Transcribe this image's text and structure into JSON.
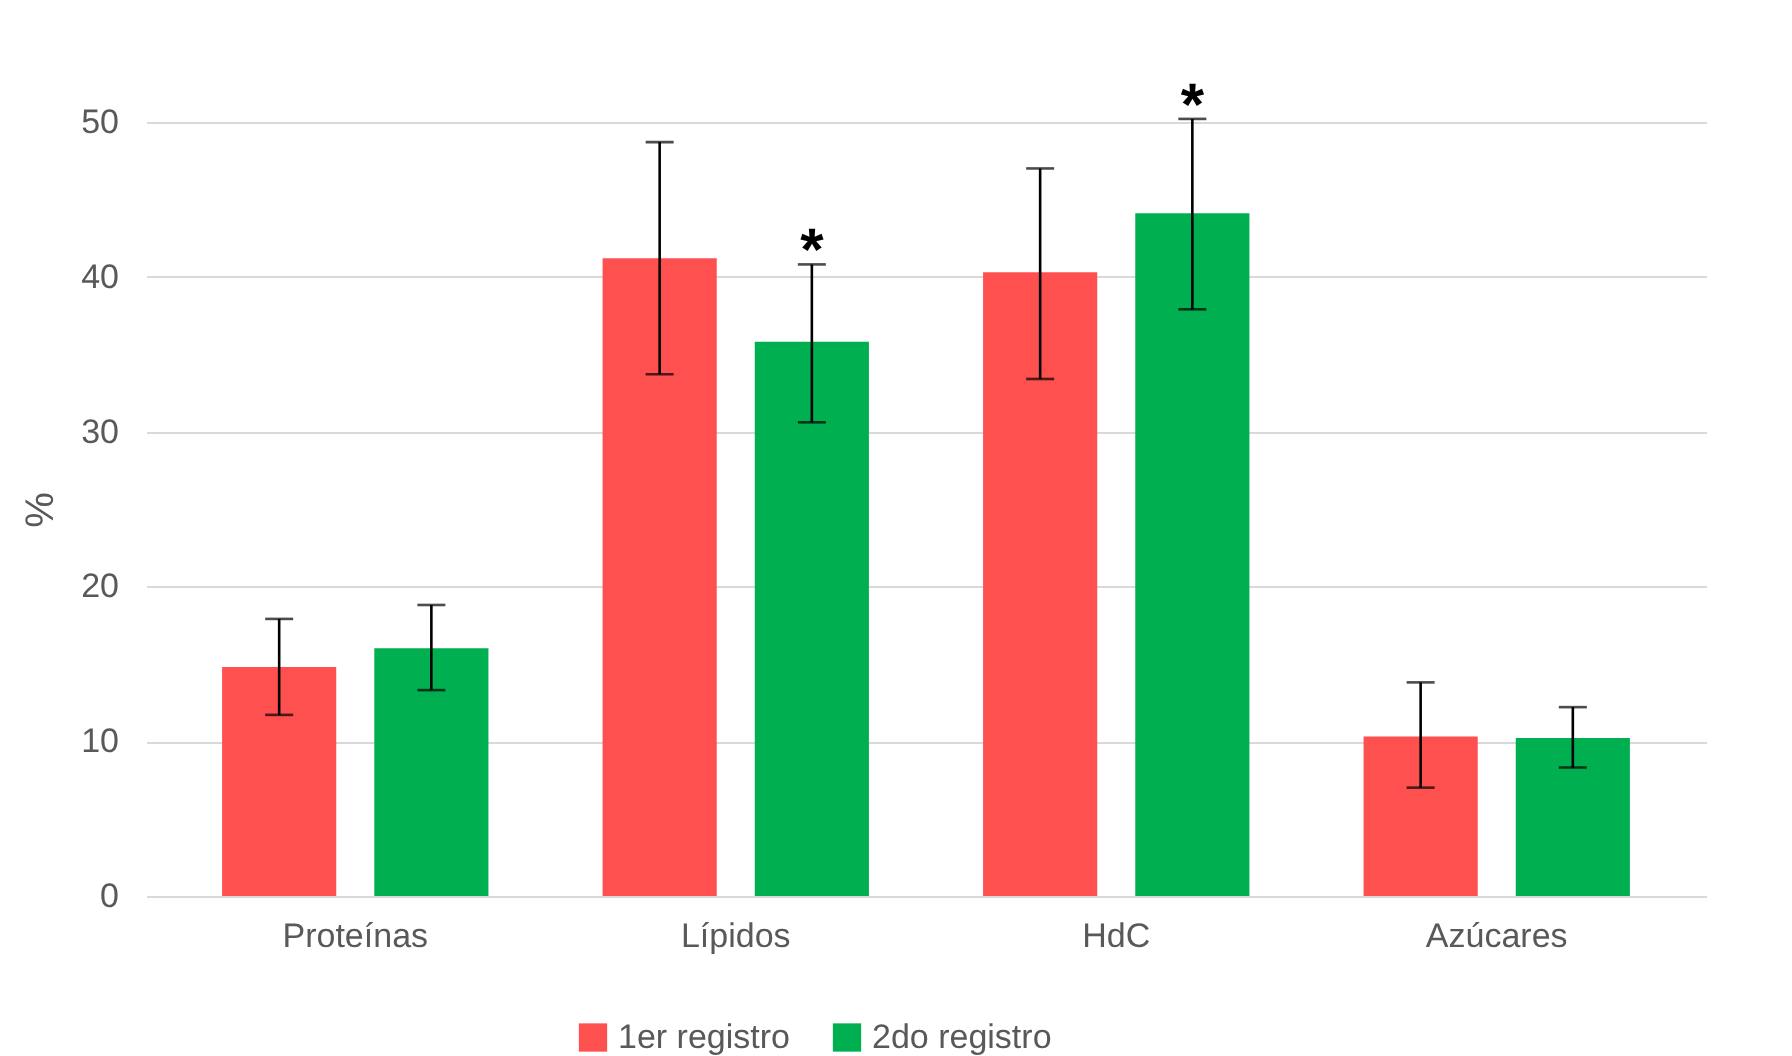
{
  "chart_data": {
    "type": "bar",
    "ylabel": "%",
    "categories": [
      "Proteínas",
      "Lípidos",
      "HdC",
      "Azúcares"
    ],
    "series": [
      {
        "name": "1er registro",
        "color": "#ff5050",
        "values": [
          14.8,
          41.2,
          40.3,
          10.3
        ],
        "errors": [
          [
            11.7,
            17.9
          ],
          [
            33.7,
            48.7
          ],
          [
            33.4,
            47.0
          ],
          [
            7.0,
            13.8
          ]
        ]
      },
      {
        "name": "2do registro",
        "color": "#00b050",
        "values": [
          16.0,
          35.8,
          44.1,
          10.2
        ],
        "errors": [
          [
            13.3,
            18.8
          ],
          [
            30.6,
            40.8
          ],
          [
            37.9,
            50.2
          ],
          [
            8.3,
            12.2
          ]
        ],
        "value_labels": [
          null,
          "*",
          "*",
          null
        ]
      }
    ],
    "ylim": [
      0,
      50
    ],
    "yticks": [
      0,
      10,
      20,
      30,
      40,
      50
    ],
    "grid": "y",
    "legend": "bottom"
  }
}
